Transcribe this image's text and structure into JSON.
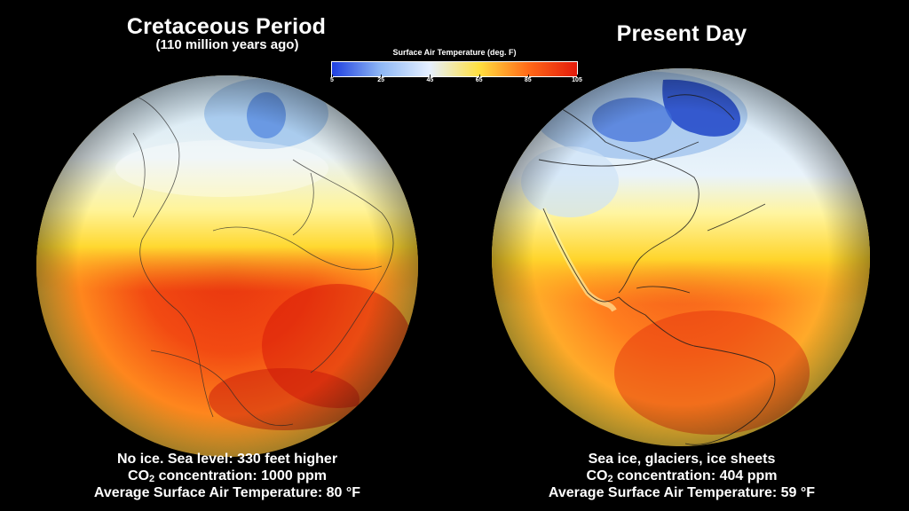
{
  "left": {
    "title": "Cretaceous Period",
    "subtitle": "(110 million years ago)",
    "caption": {
      "line1": "No ice.  Sea level: 330 feet higher",
      "co2_prefix": "CO",
      "co2_sub": "2",
      "co2_suffix": " concentration: 1000 ppm",
      "line3": "Average Surface Air Temperature: 80 °F"
    }
  },
  "right": {
    "title": "Present Day",
    "caption": {
      "line1": "Sea ice, glaciers, ice sheets",
      "co2_prefix": "CO",
      "co2_sub": "2",
      "co2_suffix": " concentration: 404 ppm",
      "line3": "Average Surface Air Temperature: 59 °F"
    }
  },
  "colorbar": {
    "title": "Surface Air Temperature (deg. F)",
    "ticks": [
      "5",
      "25",
      "45",
      "65",
      "85",
      "105"
    ],
    "colors": [
      "#1f3fe0",
      "#8fb8f5",
      "#e6f0ff",
      "#ffe040",
      "#ff6a18",
      "#e31b0c"
    ]
  }
}
